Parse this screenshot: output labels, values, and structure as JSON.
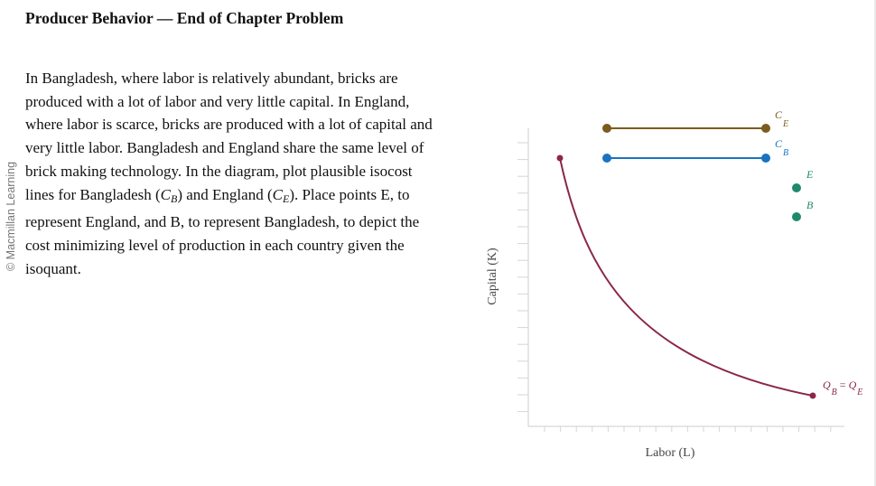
{
  "watermark": "© Macmillan Learning",
  "header": {
    "title": "Producer Behavior — End of Chapter Problem"
  },
  "problem": {
    "p1": "In Bangladesh, where labor is relatively abundant, bricks are produced with a lot of labor and very little capital. In England, where labor is scarce, bricks are produced with a lot of capital and very little labor. Bangladesh and England share the same level of brick making technology. In the diagram, plot plausible isocost lines for Bangladesh (",
    "cb_main": "C",
    "cb_sub": "B",
    "p2": ") and England (",
    "ce_main": "C",
    "ce_sub": "E",
    "p3": "). Place points E, to represent England, and B, to represent Bangladesh, to depict the cost minimizing level of production in each country given the isoquant."
  },
  "graph": {
    "x_axis_label": "Labor (L)",
    "y_axis_label": "Capital (K)",
    "palette": {
      "ce_label_main": "C",
      "ce_label_sub": "E",
      "cb_label_main": "C",
      "cb_label_sub": "B",
      "e_label": "E",
      "b_label": "B",
      "q_label": "Q",
      "q_sub_b": "B",
      "q_eq": "=",
      "q_label2": "Q",
      "q_sub_e": "E"
    },
    "colors": {
      "ce_line": "#7b5c1e",
      "cb_line": "#1a73c0",
      "point_tool": "#1f8a6b",
      "isoquant": "#8a2846",
      "axis": "#cccccc"
    }
  }
}
